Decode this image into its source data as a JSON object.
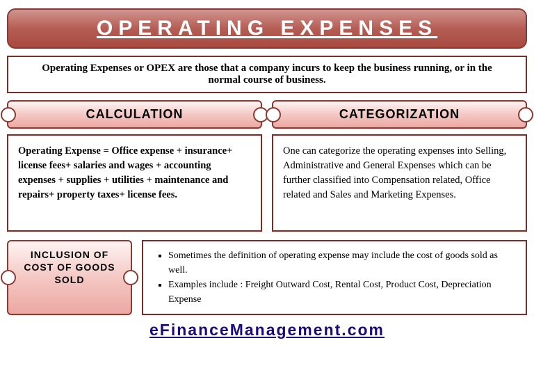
{
  "title": "OPERATING EXPENSES",
  "definition": "Operating Expenses or OPEX are those that a company incurs to keep the business running, or in the normal course of business.",
  "calculation": {
    "heading": "CALCULATION",
    "body": "Operating Expense = Office expense + insurance+ license fees+ salaries and wages + accounting expenses + supplies + utilities + maintenance and repairs+ property taxes+ license fees."
  },
  "categorization": {
    "heading": "CATEGORIZATION",
    "body": "One can categorize the operating expenses into Selling, Administrative and General Expenses which can be further classified into Compensation related, Office related and Sales and Marketing Expenses."
  },
  "inclusion": {
    "heading": "INCLUSION OF COST OF GOODS SOLD",
    "bullet1": "Sometimes the definition of operating expense may include the cost of goods sold as well.",
    "bullet2": "Examples include : Freight Outward Cost, Rental Cost, Product Cost, Depreciation Expense"
  },
  "footer": "eFinanceManagement.com",
  "colors": {
    "border": "#7a2d24",
    "banner_dark": "#a84a40",
    "ticket_light": "#f4c8c4",
    "footer_text": "#1a0a7a"
  }
}
